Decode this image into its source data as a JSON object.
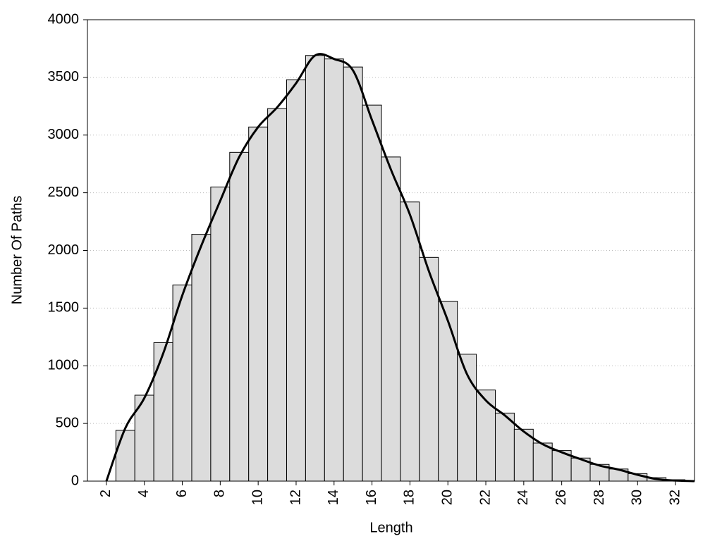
{
  "chart_data": {
    "type": "histogram",
    "x_label": "Length",
    "y_label": "Number Of Paths",
    "bins": [
      2.5,
      3.5,
      4.5,
      5.5,
      6.5,
      7.5,
      8.5,
      9.5,
      10.5,
      11.5,
      12.5,
      13.5,
      14.5,
      15.5,
      16.5,
      17.5,
      18.5,
      19.5,
      20.5,
      21.5,
      22.5,
      23.5,
      24.5,
      25.5,
      26.5,
      27.5,
      28.5,
      29.5,
      30.5,
      31.5,
      32.5
    ],
    "values": [
      440,
      745,
      1200,
      1700,
      2140,
      2550,
      2850,
      3070,
      3230,
      3480,
      3690,
      3660,
      3590,
      3260,
      2810,
      2420,
      1940,
      1560,
      1100,
      790,
      590,
      450,
      330,
      265,
      200,
      145,
      105,
      65,
      30,
      12
    ],
    "color": "#dcdcdc",
    "curve": {
      "color": "#000000",
      "x": [
        2,
        3,
        4,
        5,
        6,
        7,
        8,
        9,
        10,
        11,
        12,
        13,
        14,
        15,
        16,
        17,
        18,
        19,
        20,
        21,
        22,
        23,
        24,
        25,
        26,
        27,
        28,
        29,
        30,
        31,
        32,
        33
      ],
      "y": [
        0,
        460,
        720,
        1110,
        1610,
        2040,
        2430,
        2810,
        3070,
        3240,
        3450,
        3690,
        3660,
        3560,
        3130,
        2700,
        2310,
        1820,
        1390,
        930,
        700,
        570,
        430,
        320,
        250,
        190,
        135,
        100,
        55,
        18,
        5,
        0
      ]
    },
    "xlim": [
      1,
      33
    ],
    "ylim": [
      0,
      4000
    ],
    "xticks": [
      2,
      4,
      6,
      8,
      10,
      12,
      14,
      16,
      18,
      20,
      22,
      24,
      26,
      28,
      30,
      32
    ],
    "yticks": [
      0,
      500,
      1000,
      1500,
      2000,
      2500,
      3000,
      3500,
      4000
    ],
    "grid": true
  }
}
